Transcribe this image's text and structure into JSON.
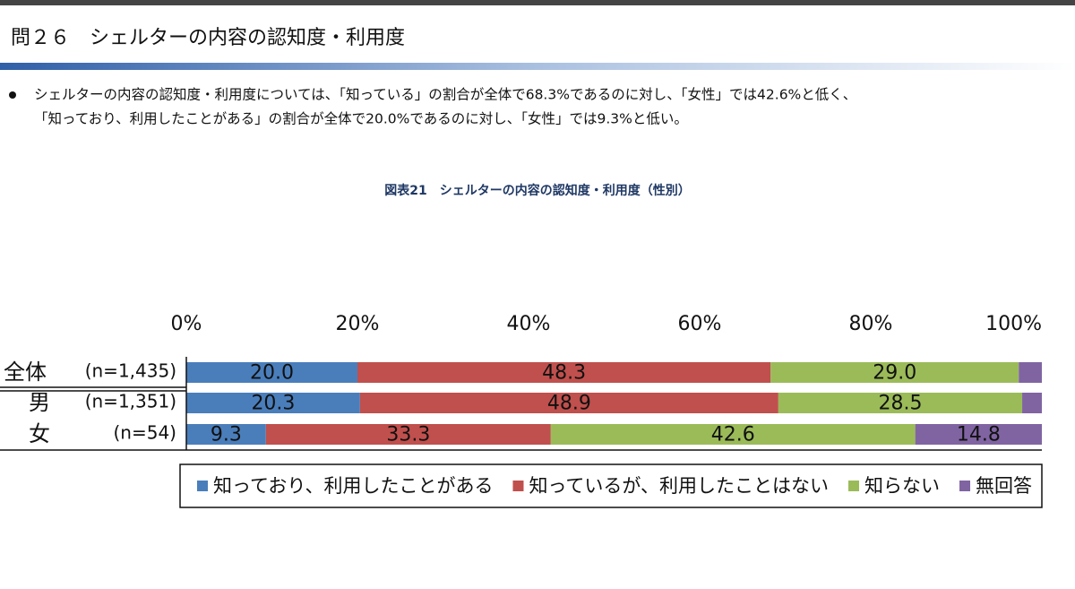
{
  "header": {
    "title": "問２６　シェルターの内容の認知度・利用度"
  },
  "body": [
    "シェルターの内容の認知度・利用度については、「知っている」の割合が全体で68.3%であるのに対し、「女性」では42.6%と低く、",
    "「知っており、利用したことがある」の割合が全体で20.0%であるのに対し、「女性」では9.3%と低い。"
  ],
  "chart_data": {
    "type": "stacked-bar-horizontal",
    "title": "図表21　シェルターの内容の認知度・利用度（性別）",
    "categories": [
      "全体",
      "男",
      "女"
    ],
    "category_notes": [
      "(n=1,435)",
      "(n=1,351)",
      "(n=54)"
    ],
    "series": [
      {
        "name": "知っており、利用したことがある",
        "color": "#4a7ebb",
        "values": [
          20.0,
          20.3,
          9.3
        ],
        "value_labels": [
          "20.0",
          "20.3",
          "9.3"
        ]
      },
      {
        "name": "知っているが、利用したことはない",
        "color": "#c0504d",
        "values": [
          48.3,
          48.9,
          33.3
        ],
        "value_labels": [
          "48.3",
          "48.9",
          "33.3"
        ]
      },
      {
        "name": "知らない",
        "color": "#9bbb59",
        "values": [
          29.0,
          28.5,
          42.6
        ],
        "value_labels": [
          "29.0",
          "28.5",
          "42.6"
        ]
      },
      {
        "name": "無回答",
        "color": "#8064a2",
        "values": [
          2.7,
          2.3,
          14.8
        ],
        "value_labels": [
          null,
          null,
          "14.8"
        ]
      }
    ],
    "xlim": [
      0,
      100
    ],
    "xticks": [
      {
        "value": 0,
        "label": "0%"
      },
      {
        "value": 20,
        "label": "20%"
      },
      {
        "value": 40,
        "label": "40%"
      },
      {
        "value": 60,
        "label": "60%"
      },
      {
        "value": 80,
        "label": "80%"
      },
      {
        "value": 100,
        "label": "100%"
      }
    ]
  }
}
